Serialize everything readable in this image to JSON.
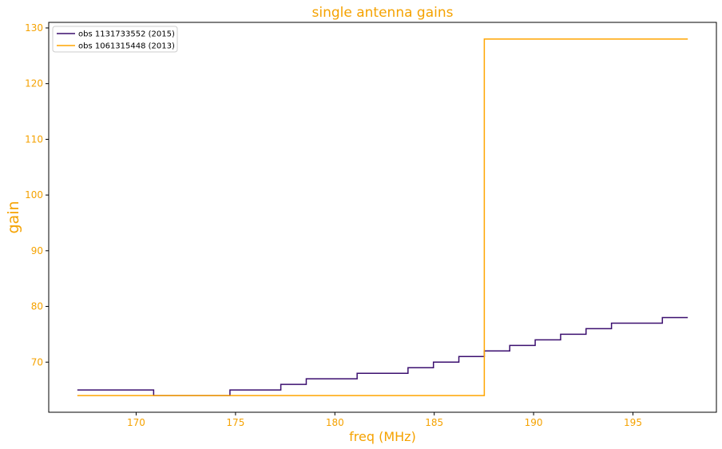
{
  "chart_data": {
    "type": "line",
    "title": "single antenna gains",
    "xlabel": "freq (MHz)",
    "ylabel": "gain",
    "xlim": [
      165.6,
      199.2
    ],
    "ylim": [
      61,
      131
    ],
    "xticks": [
      170,
      175,
      180,
      185,
      190,
      195
    ],
    "yticks": [
      70,
      80,
      90,
      100,
      110,
      120,
      130
    ],
    "grid": false,
    "legend_position": "top-left",
    "series": [
      {
        "name": "obs 1131733552 (2015)",
        "color": "#3b0f6f",
        "x": [
          167.04,
          170.88,
          170.88,
          174.72,
          174.72,
          177.28,
          177.28,
          178.56,
          178.56,
          181.12,
          181.12,
          183.68,
          183.68,
          184.96,
          184.96,
          186.24,
          186.24,
          187.52,
          187.52,
          188.8,
          188.8,
          190.08,
          190.08,
          191.36,
          191.36,
          192.64,
          192.64,
          193.92,
          193.92,
          196.48,
          196.48,
          197.76
        ],
        "y": [
          65,
          65,
          64,
          64,
          65,
          65,
          66,
          66,
          67,
          67,
          68,
          68,
          69,
          69,
          70,
          70,
          71,
          71,
          72,
          72,
          73,
          73,
          74,
          74,
          75,
          75,
          76,
          76,
          77,
          77,
          78,
          78
        ]
      },
      {
        "name": "obs 1061315448 (2013)",
        "color": "#ffa500",
        "x": [
          167.04,
          187.52,
          187.52,
          197.76
        ],
        "y": [
          64,
          64,
          128,
          128
        ]
      }
    ]
  },
  "colors": {
    "axis_text": "#f5a200",
    "frame": "#000000",
    "background": "#ffffff"
  }
}
